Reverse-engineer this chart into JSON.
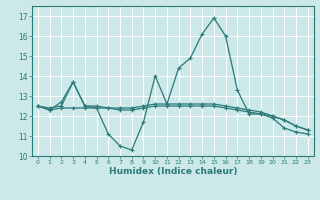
{
  "title": "",
  "xlabel": "Humidex (Indice chaleur)",
  "ylabel": "",
  "background_color": "#cce8e8",
  "grid_color": "#ffffff",
  "line_color": "#2a7a7a",
  "xlim": [
    -0.5,
    23.5
  ],
  "ylim": [
    10.0,
    17.5
  ],
  "yticks": [
    10,
    11,
    12,
    13,
    14,
    15,
    16,
    17
  ],
  "xticks": [
    0,
    1,
    2,
    3,
    4,
    5,
    6,
    7,
    8,
    9,
    10,
    11,
    12,
    13,
    14,
    15,
    16,
    17,
    18,
    19,
    20,
    21,
    22,
    23
  ],
  "series1_x": [
    0,
    1,
    2,
    3,
    4,
    5,
    6,
    7,
    8,
    9,
    10,
    11,
    12,
    13,
    14,
    15,
    16,
    17,
    18,
    19,
    20,
    21,
    22,
    23
  ],
  "series1_y": [
    12.5,
    12.3,
    12.7,
    13.7,
    12.5,
    12.4,
    11.1,
    10.5,
    10.3,
    11.7,
    14.0,
    12.6,
    14.4,
    14.9,
    16.1,
    16.9,
    16.0,
    13.3,
    12.1,
    12.1,
    11.9,
    11.4,
    11.2,
    11.1
  ],
  "series2_x": [
    0,
    1,
    2,
    3,
    4,
    5,
    6,
    7,
    8,
    9,
    10,
    11,
    12,
    13,
    14,
    15,
    16,
    17,
    18,
    19,
    20,
    21,
    22,
    23
  ],
  "series2_y": [
    12.5,
    12.4,
    12.5,
    13.7,
    12.5,
    12.5,
    12.4,
    12.4,
    12.4,
    12.5,
    12.6,
    12.6,
    12.6,
    12.6,
    12.6,
    12.6,
    12.5,
    12.4,
    12.3,
    12.2,
    12.0,
    11.8,
    11.5,
    11.3
  ],
  "series3_x": [
    0,
    1,
    2,
    3,
    4,
    5,
    6,
    7,
    8,
    9,
    10,
    11,
    12,
    13,
    14,
    15,
    16,
    17,
    18,
    19,
    20,
    21,
    22,
    23
  ],
  "series3_y": [
    12.5,
    12.3,
    12.4,
    12.4,
    12.4,
    12.4,
    12.4,
    12.3,
    12.3,
    12.4,
    12.5,
    12.5,
    12.5,
    12.5,
    12.5,
    12.5,
    12.4,
    12.3,
    12.2,
    12.1,
    12.0,
    11.8,
    11.5,
    11.3
  ]
}
